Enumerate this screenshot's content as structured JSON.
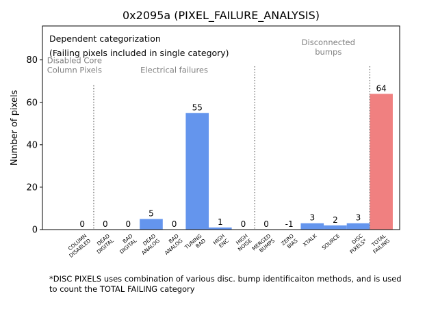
{
  "chart_data": {
    "type": "bar",
    "title": "0x2095a (PIXEL_FAILURE_ANALYSIS)",
    "ylabel": "Number of pixels",
    "xlabel": "",
    "ylim": [
      0,
      96
    ],
    "yticks": [
      0,
      20,
      40,
      60,
      80
    ],
    "grid": false,
    "categories": [
      {
        "label_lines": [
          "COLUMN",
          "DISABLED"
        ],
        "value": 0
      },
      {
        "label_lines": [
          "DEAD",
          "DIGITAL"
        ],
        "value": 0
      },
      {
        "label_lines": [
          "BAD",
          "DIGITAL"
        ],
        "value": 0
      },
      {
        "label_lines": [
          "DEAD",
          "ANALOG"
        ],
        "value": 5
      },
      {
        "label_lines": [
          "BAD",
          "ANALOG"
        ],
        "value": 0
      },
      {
        "label_lines": [
          "TUNING",
          "BAD"
        ],
        "value": 55
      },
      {
        "label_lines": [
          "HIGH",
          "ENC"
        ],
        "value": 1
      },
      {
        "label_lines": [
          "HIGH",
          "NOISE"
        ],
        "value": 0
      },
      {
        "label_lines": [
          "MERGED",
          "BUMPS"
        ],
        "value": 0
      },
      {
        "label_lines": [
          "ZERO",
          "BIAS"
        ],
        "value": -1
      },
      {
        "label_lines": [
          "XTALK"
        ],
        "value": 3
      },
      {
        "label_lines": [
          "SOURCE"
        ],
        "value": 2
      },
      {
        "label_lines": [
          "DISC",
          "PIXELS*"
        ],
        "value": 3
      },
      {
        "label_lines": [
          "TOTAL",
          "FAILING"
        ],
        "value": 64
      }
    ],
    "bar_color": "#6495ED",
    "total_bar_color": "#F08080",
    "separator_color": "#808080",
    "group_label_color": "#808080",
    "info_box_lines": [
      "Dependent categorization",
      "(Failing pixels included in single category)"
    ],
    "group_labels": [
      {
        "lines": [
          "Disabled Core",
          "Column Pixels"
        ]
      },
      {
        "lines": [
          "Electrical failures"
        ]
      },
      {
        "lines": [
          "Disconnected",
          "bumps"
        ]
      }
    ]
  },
  "footnote_lines": [
    "*DISC PIXELS uses combination of various disc. bump identificaiton methods, and is used",
    "to count the TOTAL FAILING category"
  ]
}
